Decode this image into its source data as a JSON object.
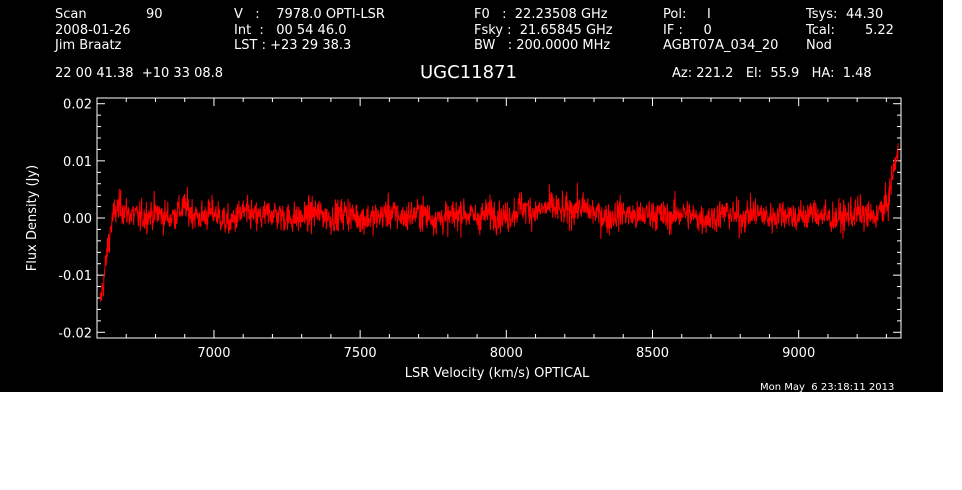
{
  "header": {
    "scan_label": "Scan",
    "scan_number": "90",
    "date": "2008-01-26",
    "observer": "Jim Braatz",
    "coords": "22 00 41.38  +10 33 08.8",
    "velocity": "V   :    7978.0 OPTI-LSR",
    "integration": "Int  :   00 54 46.0",
    "lst": "LST : +23 29 38.3",
    "f0": "F0   :  22.23508 GHz",
    "fsky": "Fsky :  21.65845 GHz",
    "bw": "BW   : 200.0000 MHz",
    "pol": "Pol:     I",
    "if": "IF :     0",
    "project": "AGBT07A_034_20",
    "tsys_label": "Tsys:",
    "tsys_value": "44.30",
    "tcal_label": "Tcal:",
    "tcal_value": "5.22",
    "mode": "Nod",
    "source": "UGC11871",
    "pointing": "Az: 221.2   El:  55.9   HA:  1.48",
    "timestamp": "Mon May  6 23:18:11 2013"
  },
  "colors": {
    "background": "#000000",
    "axes": "#ffffff",
    "series": "#ff0000"
  },
  "chart_data": {
    "type": "line",
    "title": "UGC11871",
    "xlabel": "LSR Velocity (km/s) OPTICAL",
    "ylabel": "Flux Density (Jy)",
    "xlim": [
      6600,
      9350
    ],
    "ylim": [
      -0.021,
      0.021
    ],
    "xticks": [
      7000,
      7500,
      8000,
      8500,
      9000
    ],
    "yticks": [
      -0.02,
      -0.01,
      0.0,
      0.01,
      0.02
    ],
    "ytick_labels": [
      "-0.02",
      "-0.01",
      "0.00",
      "0.01",
      "0.02"
    ],
    "grid": false,
    "series": [
      {
        "color": "#ff0000",
        "x": [
          6610,
          6620,
          6630,
          6640,
          6650,
          6660,
          6680,
          6700,
          6750,
          6800,
          6850,
          6900,
          6950,
          7000,
          7050,
          7100,
          7150,
          7200,
          7250,
          7300,
          7350,
          7400,
          7450,
          7500,
          7550,
          7600,
          7650,
          7700,
          7750,
          7800,
          7850,
          7900,
          7950,
          8000,
          8050,
          8100,
          8150,
          8200,
          8250,
          8300,
          8350,
          8400,
          8450,
          8500,
          8550,
          8600,
          8650,
          8700,
          8750,
          8800,
          8850,
          8900,
          8950,
          9000,
          9050,
          9100,
          9150,
          9200,
          9250,
          9300,
          9310,
          9320,
          9330,
          9340
        ],
        "y": [
          -0.015,
          -0.012,
          -0.008,
          -0.004,
          -0.001,
          0.001,
          0.002,
          0.001,
          0.0,
          0.001,
          0.0,
          0.002,
          0.0,
          0.001,
          -0.001,
          0.001,
          0.0,
          0.001,
          0.0,
          0.0,
          0.001,
          0.0,
          0.001,
          0.0,
          0.0,
          0.001,
          0.0,
          0.001,
          0.0,
          0.0,
          0.001,
          0.0,
          0.001,
          0.0,
          0.002,
          0.001,
          0.002,
          0.001,
          0.002,
          0.001,
          0.0,
          0.001,
          0.0,
          0.001,
          0.0,
          0.001,
          0.0,
          0.0,
          0.001,
          0.0,
          0.001,
          0.0,
          0.001,
          0.0,
          0.001,
          0.0,
          0.0,
          0.001,
          0.0,
          0.002,
          0.004,
          0.007,
          0.01,
          0.011
        ],
        "noise_rms": 0.0025
      }
    ]
  }
}
